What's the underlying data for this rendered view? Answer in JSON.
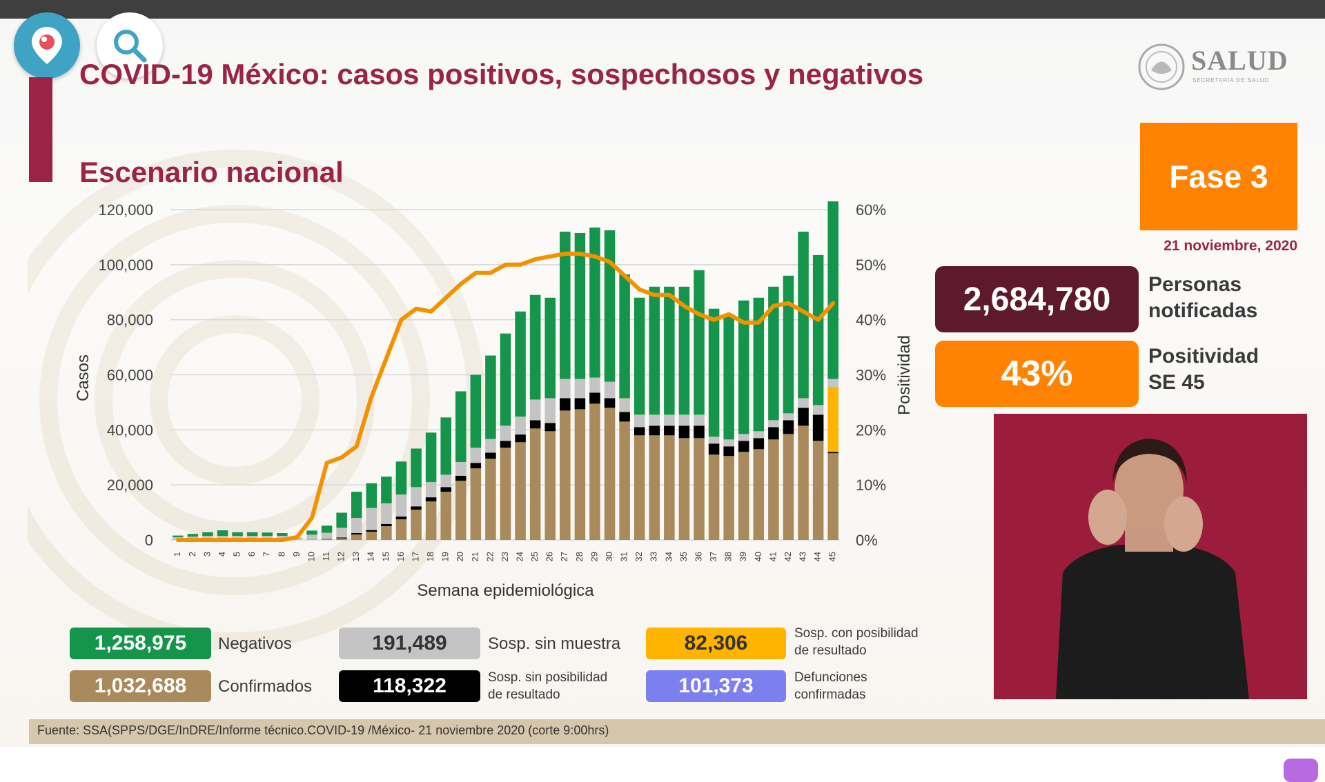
{
  "title": "COVID-19 México: casos positivos, sospechosos y negativos",
  "subtitle": "Escenario nacional",
  "logo": {
    "text": "SALUD",
    "subtext": "SECRETARÍA DE SALUD"
  },
  "phase": {
    "label": "Fase 3",
    "date": "21 noviembre, 2020"
  },
  "stats": [
    {
      "value": "2,684,780",
      "label_line1": "Personas",
      "label_line2": "notificadas"
    },
    {
      "value": "43%",
      "label_line1": "Positividad",
      "label_line2": "SE 45"
    }
  ],
  "legend": {
    "negativos": {
      "value": "1,258,975",
      "label": "Negativos",
      "color": "#15954b"
    },
    "confirmados": {
      "value": "1,032,688",
      "label": "Confirmados",
      "color": "#a98a5c"
    },
    "sosp_sin_muestra": {
      "value": "191,489",
      "label": "Sosp. sin muestra",
      "color": "#c4c4c4"
    },
    "sosp_sin_posibilidad": {
      "value": "118,322",
      "label_line1": "Sosp. sin posibilidad",
      "label_line2": "de resultado",
      "color": "#000000"
    },
    "sosp_con_posibilidad": {
      "value": "82,306",
      "label_line1": "Sosp. con posibilidad",
      "label_line2": "de resultado",
      "color": "#ffb400"
    },
    "defunciones": {
      "value": "101,373",
      "label_line1": "Defunciones",
      "label_line2": "confirmadas",
      "color": "#7b7ff0"
    }
  },
  "footer": "Fuente: SSA(SPPS/DGE/InDRE/Informe técnico.COVID-19 /México- 21 noviembre 2020 (corte 9:00hrs)",
  "app_icons": [
    "periscope-icon",
    "search-icon"
  ],
  "chart_data": {
    "type": "bar",
    "stacked": true,
    "xlabel": "Semana epidemiológica",
    "ylabel": "Casos",
    "y2label": "Positividad",
    "ylim": [
      0,
      120000
    ],
    "y2lim": [
      0,
      60
    ],
    "yticks": [
      "0",
      "20,000",
      "40,000",
      "60,000",
      "80,000",
      "100,000",
      "120,000"
    ],
    "y2ticks": [
      "0%",
      "10%",
      "20%",
      "30%",
      "40%",
      "50%",
      "60%"
    ],
    "categories": [
      "1",
      "2",
      "3",
      "4",
      "5",
      "6",
      "7",
      "8",
      "9",
      "10",
      "11",
      "12",
      "13",
      "14",
      "15",
      "16",
      "17",
      "18",
      "19",
      "20",
      "21",
      "22",
      "23",
      "24",
      "25",
      "26",
      "27",
      "28",
      "29",
      "30",
      "31",
      "32",
      "33",
      "34",
      "35",
      "36",
      "37",
      "38",
      "39",
      "40",
      "41",
      "42",
      "43",
      "44",
      "45"
    ],
    "grid": true,
    "series": [
      {
        "name": "Confirmados",
        "color": "#a98a5c",
        "values": [
          0,
          0,
          0,
          0,
          0,
          0,
          0,
          0,
          0,
          100,
          300,
          600,
          2000,
          3000,
          5000,
          7500,
          11000,
          14000,
          17500,
          21500,
          26000,
          29500,
          33500,
          35500,
          40500,
          39500,
          47000,
          47500,
          49500,
          48000,
          43000,
          38000,
          38000,
          38000,
          37000,
          37000,
          31000,
          30500,
          32000,
          33000,
          36500,
          38500,
          41500,
          36000,
          31500
        ]
      },
      {
        "name": "Sosp. sin posibilidad de resultado",
        "color": "#000000",
        "values": [
          0,
          0,
          0,
          0,
          0,
          0,
          0,
          0,
          0,
          0,
          100,
          300,
          500,
          600,
          800,
          1000,
          1200,
          1500,
          1700,
          1800,
          2000,
          2200,
          2500,
          2800,
          3000,
          3000,
          4500,
          4000,
          4000,
          3500,
          3500,
          3000,
          3500,
          3500,
          4500,
          4500,
          4000,
          3500,
          4000,
          4000,
          4500,
          5000,
          6500,
          9500,
          500
        ]
      },
      {
        "name": "Sosp. con posibilidad de resultado",
        "color": "#ffb400",
        "values": [
          0,
          0,
          0,
          0,
          0,
          0,
          0,
          0,
          0,
          0,
          0,
          0,
          0,
          0,
          0,
          0,
          0,
          0,
          0,
          0,
          0,
          0,
          0,
          0,
          0,
          0,
          0,
          0,
          0,
          0,
          0,
          0,
          0,
          0,
          0,
          0,
          0,
          0,
          0,
          0,
          0,
          0,
          0,
          0,
          23500
        ]
      },
      {
        "name": "Sosp. sin muestra",
        "color": "#c4c4c4",
        "values": [
          1000,
          1200,
          1500,
          1500,
          1500,
          1500,
          1500,
          1500,
          1000,
          1800,
          2200,
          3500,
          5500,
          8000,
          7500,
          8000,
          7000,
          5500,
          4500,
          5000,
          5500,
          5000,
          5500,
          6500,
          7500,
          9000,
          7000,
          7000,
          5500,
          6000,
          5000,
          4500,
          4000,
          4000,
          4000,
          4000,
          2500,
          2500,
          2500,
          2500,
          2500,
          2500,
          3500,
          3500,
          3000
        ]
      },
      {
        "name": "Negativos",
        "color": "#15954b",
        "values": [
          600,
          1000,
          1300,
          2000,
          1300,
          1300,
          1200,
          1000,
          0,
          1500,
          2600,
          5500,
          9500,
          9000,
          9700,
          12000,
          14000,
          18000,
          20800,
          25700,
          26500,
          30300,
          33500,
          38200,
          38000,
          36500,
          53500,
          53000,
          54500,
          55000,
          45000,
          42500,
          46500,
          46500,
          46500,
          52500,
          46500,
          45500,
          48500,
          48500,
          48500,
          50000,
          60500,
          54500,
          64500
        ]
      }
    ],
    "line": {
      "name": "Positividad",
      "color": "#f39200",
      "values": [
        0,
        0,
        0,
        0,
        0,
        0,
        0,
        0,
        0.5,
        4,
        14,
        15,
        17,
        26,
        33,
        40,
        42,
        41.5,
        44,
        46.5,
        48.5,
        48.5,
        50,
        50,
        51,
        51.5,
        52,
        52,
        51.5,
        50.5,
        48,
        45.5,
        44.5,
        44.5,
        42.5,
        41,
        40,
        41,
        39.5,
        39.5,
        42.5,
        43,
        41.5,
        40,
        43
      ]
    }
  }
}
